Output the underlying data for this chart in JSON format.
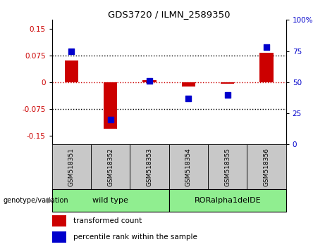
{
  "title": "GDS3720 / ILMN_2589350",
  "samples": [
    "GSM518351",
    "GSM518352",
    "GSM518353",
    "GSM518354",
    "GSM518355",
    "GSM518356"
  ],
  "transformed_counts": [
    0.06,
    -0.13,
    0.005,
    -0.012,
    -0.005,
    0.082
  ],
  "percentile_ranks": [
    75,
    20,
    51,
    37,
    40,
    78
  ],
  "ylim_left": [
    -0.175,
    0.175
  ],
  "ylim_right": [
    0,
    100
  ],
  "yticks_left": [
    -0.15,
    -0.075,
    0,
    0.075,
    0.15
  ],
  "yticks_right": [
    0,
    25,
    50,
    75,
    100
  ],
  "hlines": [
    0.075,
    0,
    -0.075
  ],
  "bar_color": "#CC0000",
  "dot_color": "#0000CC",
  "bar_width": 0.35,
  "dot_size": 40,
  "legend_labels": [
    "transformed count",
    "percentile rank within the sample"
  ],
  "legend_colors": [
    "#CC0000",
    "#0000CC"
  ],
  "genotype_label": "genotype/variation",
  "sample_box_color": "#C8C8C8",
  "zero_line_color": "#CC0000",
  "group_defs": [
    {
      "start": 0,
      "end": 2,
      "label": "wild type",
      "color": "#90EE90"
    },
    {
      "start": 3,
      "end": 5,
      "label": "RORalpha1delDE",
      "color": "#90EE90"
    }
  ]
}
